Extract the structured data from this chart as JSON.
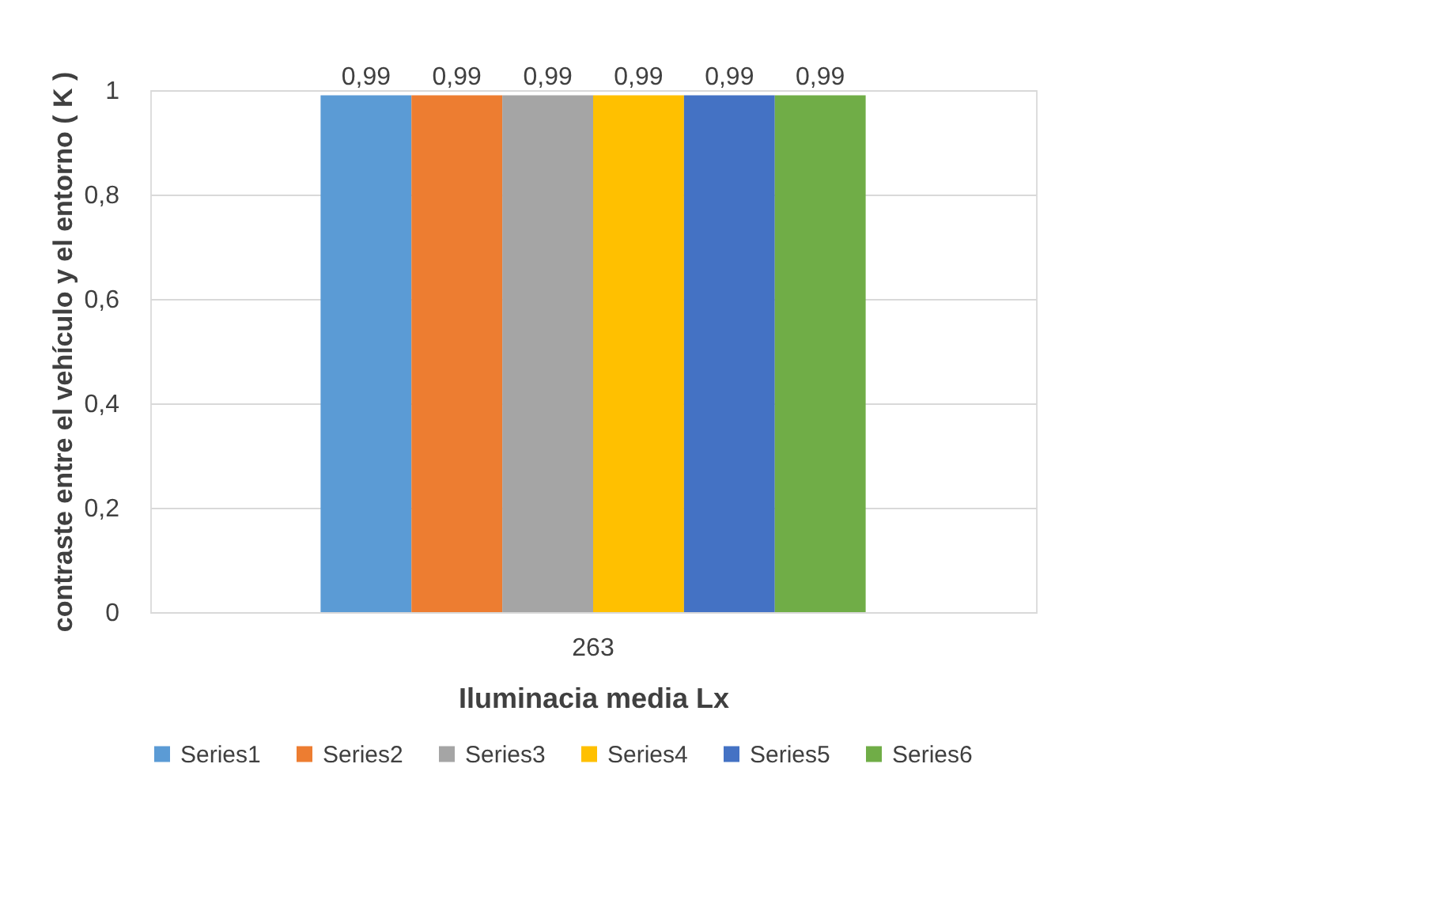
{
  "chart_data": {
    "type": "bar",
    "xlabel": "Iluminacia media Lx",
    "ylabel": "contraste entre el vehículo y el entorno ( K )",
    "categories": [
      "263"
    ],
    "series": [
      {
        "name": "Series1",
        "color": "#5b9bd5",
        "values": [
          0.99
        ],
        "value_labels": [
          "0,99"
        ]
      },
      {
        "name": "Series2",
        "color": "#ed7d31",
        "values": [
          0.99
        ],
        "value_labels": [
          "0,99"
        ]
      },
      {
        "name": "Series3",
        "color": "#a5a5a5",
        "values": [
          0.99
        ],
        "value_labels": [
          "0,99"
        ]
      },
      {
        "name": "Series4",
        "color": "#ffc000",
        "values": [
          0.99
        ],
        "value_labels": [
          "0,99"
        ]
      },
      {
        "name": "Series5",
        "color": "#4472c4",
        "values": [
          0.99
        ],
        "value_labels": [
          "0,99"
        ]
      },
      {
        "name": "Series6",
        "color": "#70ad47",
        "values": [
          0.99
        ],
        "value_labels": [
          "0,99"
        ]
      }
    ],
    "ylim": [
      0,
      1
    ],
    "yticks": [
      0,
      {
        "value": 0.2,
        "label": "0,2"
      },
      {
        "value": 0.4,
        "label": "0,4"
      },
      {
        "value": 0.6,
        "label": "0,6"
      },
      {
        "value": 0.8,
        "label": "0,8"
      },
      1
    ],
    "grid": "y",
    "legend": "bottom"
  }
}
